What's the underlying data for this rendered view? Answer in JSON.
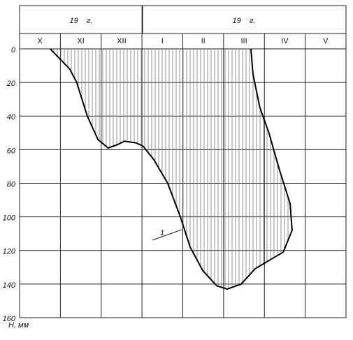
{
  "chart_data": {
    "type": "line",
    "period_labels": [
      "19    г.",
      "19    г."
    ],
    "categories": [
      "X",
      "XI",
      "XII",
      "I",
      "II",
      "III",
      "IV",
      "V"
    ],
    "y_label": "H, мм",
    "y_inverted": true,
    "xlim": [
      0,
      8
    ],
    "ylim": [
      0,
      160
    ],
    "yticks": [
      0,
      20,
      40,
      60,
      80,
      100,
      120,
      140,
      160
    ],
    "grid": true,
    "series": [
      {
        "name": "1",
        "color": "#000000",
        "x": [
          0.75,
          1.23,
          1.4,
          1.66,
          1.92,
          2.17,
          2.4,
          2.57,
          2.86,
          3.03,
          3.29,
          3.63,
          3.94,
          4.18,
          4.49,
          4.83,
          5.09,
          5.43,
          5.77,
          6.11,
          6.46,
          6.68,
          6.63,
          6.37,
          6.11,
          5.89,
          5.72,
          5.67
        ],
        "values": [
          0,
          12,
          20,
          40,
          54,
          59,
          57,
          55,
          56,
          58,
          66,
          80,
          100,
          118,
          132,
          141,
          143,
          140,
          131,
          126,
          121,
          108,
          92,
          72,
          50,
          35,
          15,
          0
        ]
      }
    ]
  }
}
